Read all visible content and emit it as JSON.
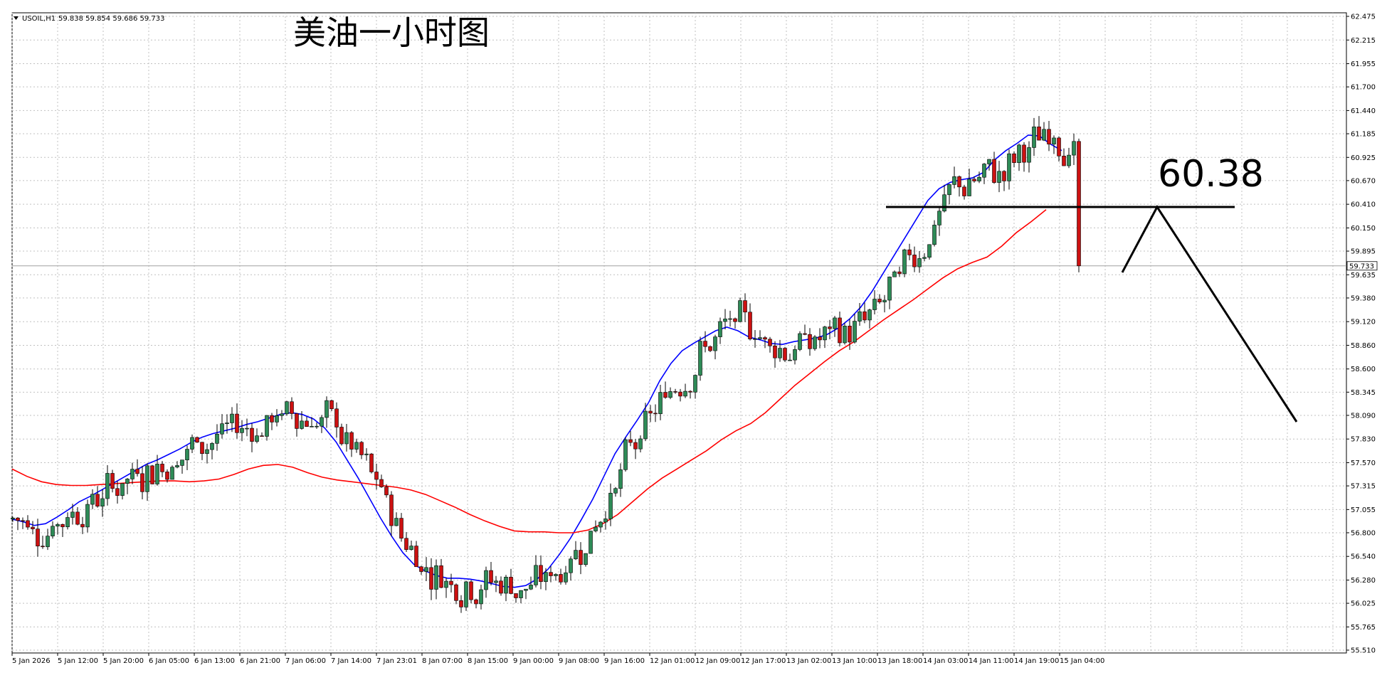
{
  "chart_data": {
    "type": "candlestick",
    "header": {
      "symbol": "USOIL,H1",
      "ohlc": "59.838 59.854 59.686 59.733"
    },
    "title": "美油一小时图",
    "annotation_value": "60.38",
    "current_price": 59.733,
    "current_price_label": "59.733",
    "resistance_level": 60.38,
    "ylim": [
      55.51,
      62.475
    ],
    "y_ticks": [
      "62.475",
      "62.215",
      "61.955",
      "61.700",
      "61.440",
      "61.185",
      "60.925",
      "60.670",
      "60.410",
      "60.150",
      "59.895",
      "59.635",
      "59.380",
      "59.120",
      "58.860",
      "58.600",
      "58.345",
      "58.090",
      "57.830",
      "57.570",
      "57.315",
      "57.055",
      "56.800",
      "56.540",
      "56.280",
      "56.025",
      "55.765",
      "55.510"
    ],
    "x_ticks": [
      "5 Jan 2026",
      "5 Jan 12:00",
      "5 Jan 20:00",
      "6 Jan 05:00",
      "6 Jan 13:00",
      "6 Jan 21:00",
      "7 Jan 06:00",
      "7 Jan 14:00",
      "7 Jan 23:01",
      "8 Jan 07:00",
      "8 Jan 15:00",
      "9 Jan 00:00",
      "9 Jan 08:00",
      "9 Jan 16:00",
      "12 Jan 01:00",
      "12 Jan 09:00",
      "12 Jan 17:00",
      "13 Jan 02:00",
      "13 Jan 10:00",
      "13 Jan 18:00",
      "14 Jan 03:00",
      "14 Jan 11:00",
      "14 Jan 19:00",
      "15 Jan 04:00"
    ],
    "grid": true,
    "colors": {
      "bull_candle": "#2e8b57",
      "bear_candle": "#cc1111",
      "ma_fast": "#0000ff",
      "ma_slow": "#ff0000",
      "annotation": "#000000",
      "grid": "#c0c0c0",
      "price_line": "#a0a0a0"
    },
    "series": [
      {
        "type": "ma",
        "color": "blue",
        "values": [
          56.95,
          56.92,
          56.88,
          56.9,
          56.97,
          57.05,
          57.14,
          57.2,
          57.27,
          57.34,
          57.41,
          57.48,
          57.55,
          57.6,
          57.66,
          57.72,
          57.79,
          57.85,
          57.89,
          57.92,
          57.95,
          57.99,
          58.02,
          58.06,
          58.1,
          58.12,
          58.1,
          58.05,
          57.95,
          57.8,
          57.6,
          57.4,
          57.18,
          56.96,
          56.76,
          56.58,
          56.45,
          56.38,
          56.33,
          56.3,
          56.3,
          56.29,
          56.27,
          56.24,
          56.21,
          56.2,
          56.22,
          56.29,
          56.4,
          56.56,
          56.74,
          56.95,
          57.17,
          57.42,
          57.67,
          57.86,
          58.04,
          58.23,
          58.47,
          58.66,
          58.8,
          58.88,
          58.95,
          59.02,
          59.06,
          59.02,
          58.95,
          58.92,
          58.88,
          58.87,
          58.9,
          58.92,
          58.94,
          58.98,
          59.05,
          59.15,
          59.28,
          59.45,
          59.65,
          59.85,
          60.05,
          60.25,
          60.45,
          60.58,
          60.65,
          60.68,
          60.7,
          60.76,
          60.9,
          61.0,
          61.08,
          61.17,
          61.16,
          61.07,
          61.0
        ]
      },
      {
        "type": "ma",
        "color": "red",
        "values": [
          57.5,
          57.42,
          57.36,
          57.33,
          57.32,
          57.32,
          57.33,
          57.34,
          57.35,
          57.36,
          57.37,
          57.37,
          57.36,
          57.37,
          57.39,
          57.44,
          57.5,
          57.54,
          57.55,
          57.52,
          57.46,
          57.41,
          57.38,
          57.36,
          57.34,
          57.32,
          57.3,
          57.27,
          57.22,
          57.15,
          57.08,
          57.0,
          56.93,
          56.87,
          56.82,
          56.81,
          56.81,
          56.8,
          56.8,
          56.83,
          56.9,
          57.0,
          57.14,
          57.28,
          57.4,
          57.5,
          57.6,
          57.7,
          57.82,
          57.92,
          58.0,
          58.12,
          58.27,
          58.42,
          58.55,
          58.68,
          58.8,
          58.9,
          59.02,
          59.14,
          59.25,
          59.36,
          59.48,
          59.6,
          59.7,
          59.77,
          59.83,
          59.95,
          60.1,
          60.22,
          60.35
        ]
      }
    ]
  }
}
